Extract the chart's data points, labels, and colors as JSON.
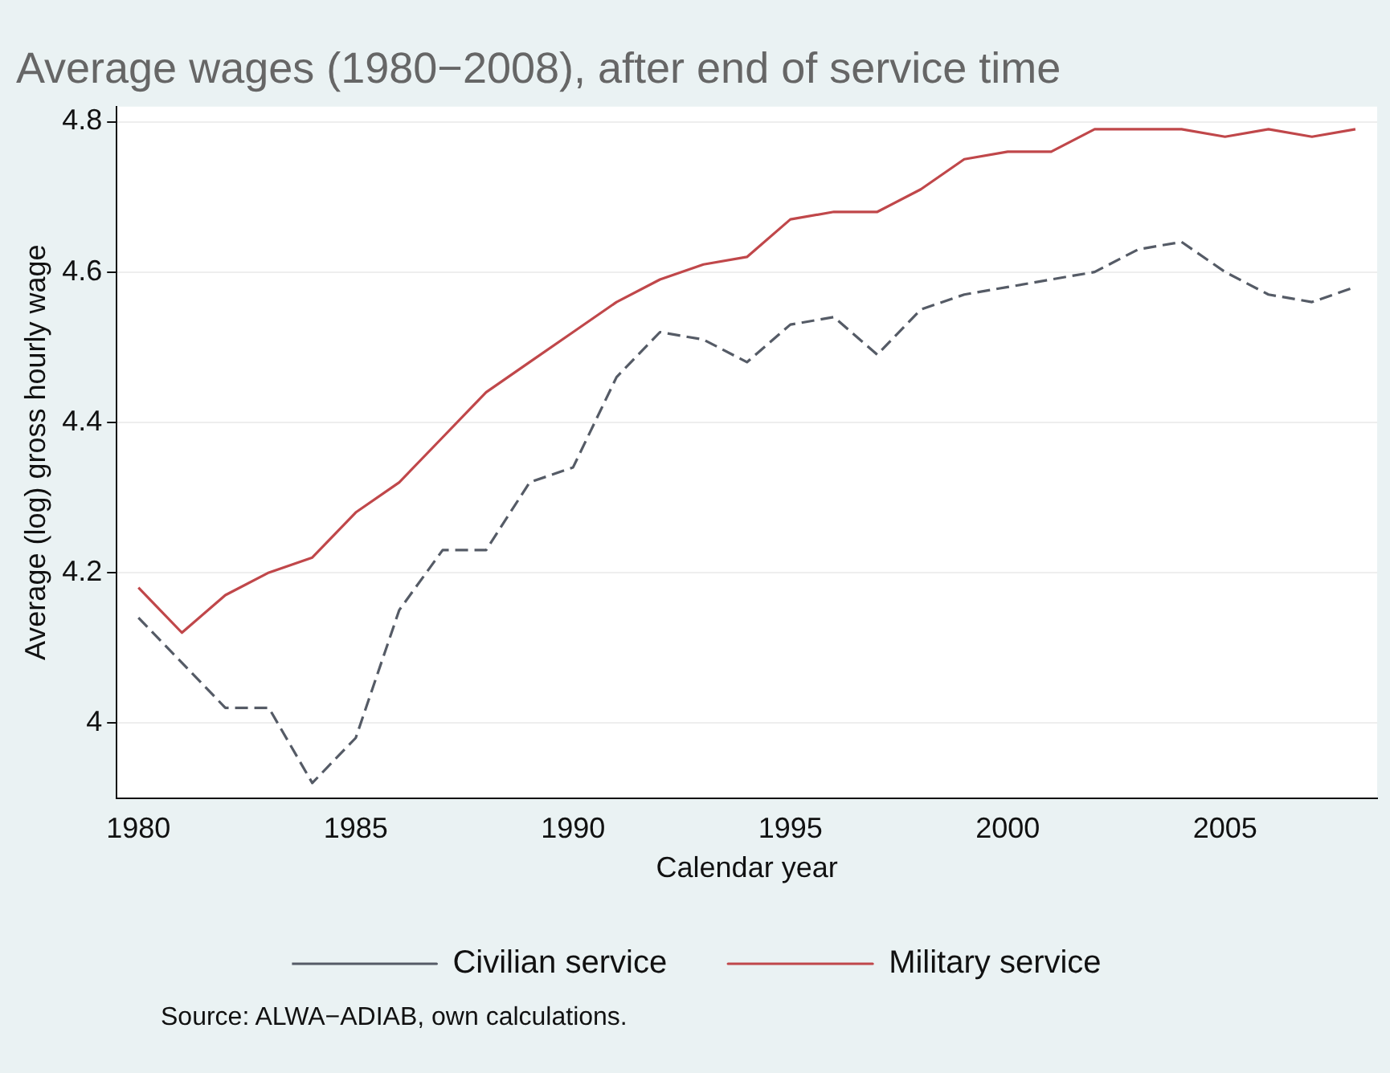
{
  "chart_data": {
    "type": "line",
    "title": "Average wages (1980−2008), after end of service time",
    "xlabel": "Calendar year",
    "ylabel": "Average (log) gross hourly wage",
    "x": [
      1980,
      1981,
      1982,
      1983,
      1984,
      1985,
      1986,
      1987,
      1988,
      1989,
      1990,
      1991,
      1992,
      1993,
      1994,
      1995,
      1996,
      1997,
      1998,
      1999,
      2000,
      2001,
      2002,
      2003,
      2004,
      2005,
      2006,
      2007,
      2008
    ],
    "series": [
      {
        "name": "Civilian service",
        "color": "#555b66",
        "line_style": "dashed",
        "values": [
          4.14,
          4.08,
          4.02,
          4.02,
          3.92,
          3.98,
          4.15,
          4.23,
          4.23,
          4.32,
          4.34,
          4.46,
          4.52,
          4.51,
          4.48,
          4.53,
          4.54,
          4.49,
          4.55,
          4.57,
          4.58,
          4.59,
          4.6,
          4.63,
          4.64,
          4.6,
          4.57,
          4.56,
          4.58
        ]
      },
      {
        "name": "Military service",
        "color": "#c0474a",
        "line_style": "solid",
        "values": [
          4.18,
          4.12,
          4.17,
          4.2,
          4.22,
          4.28,
          4.32,
          4.38,
          4.44,
          4.48,
          4.52,
          4.56,
          4.59,
          4.61,
          4.62,
          4.67,
          4.68,
          4.68,
          4.71,
          4.75,
          4.76,
          4.76,
          4.79,
          4.79,
          4.79,
          4.78,
          4.79,
          4.78,
          4.79
        ]
      }
    ],
    "xlim": [
      1979.5,
      2008.5
    ],
    "xticks": [
      1980,
      1985,
      1990,
      1995,
      2000,
      2005
    ],
    "ylim": [
      3.9,
      4.82
    ],
    "yticks": [
      4,
      4.2,
      4.4,
      4.6,
      4.8
    ],
    "grid": "y",
    "legend": "bottom",
    "marker": "none",
    "annotations": [
      "Source: ALWA−ADIAB, own calculations."
    ]
  }
}
